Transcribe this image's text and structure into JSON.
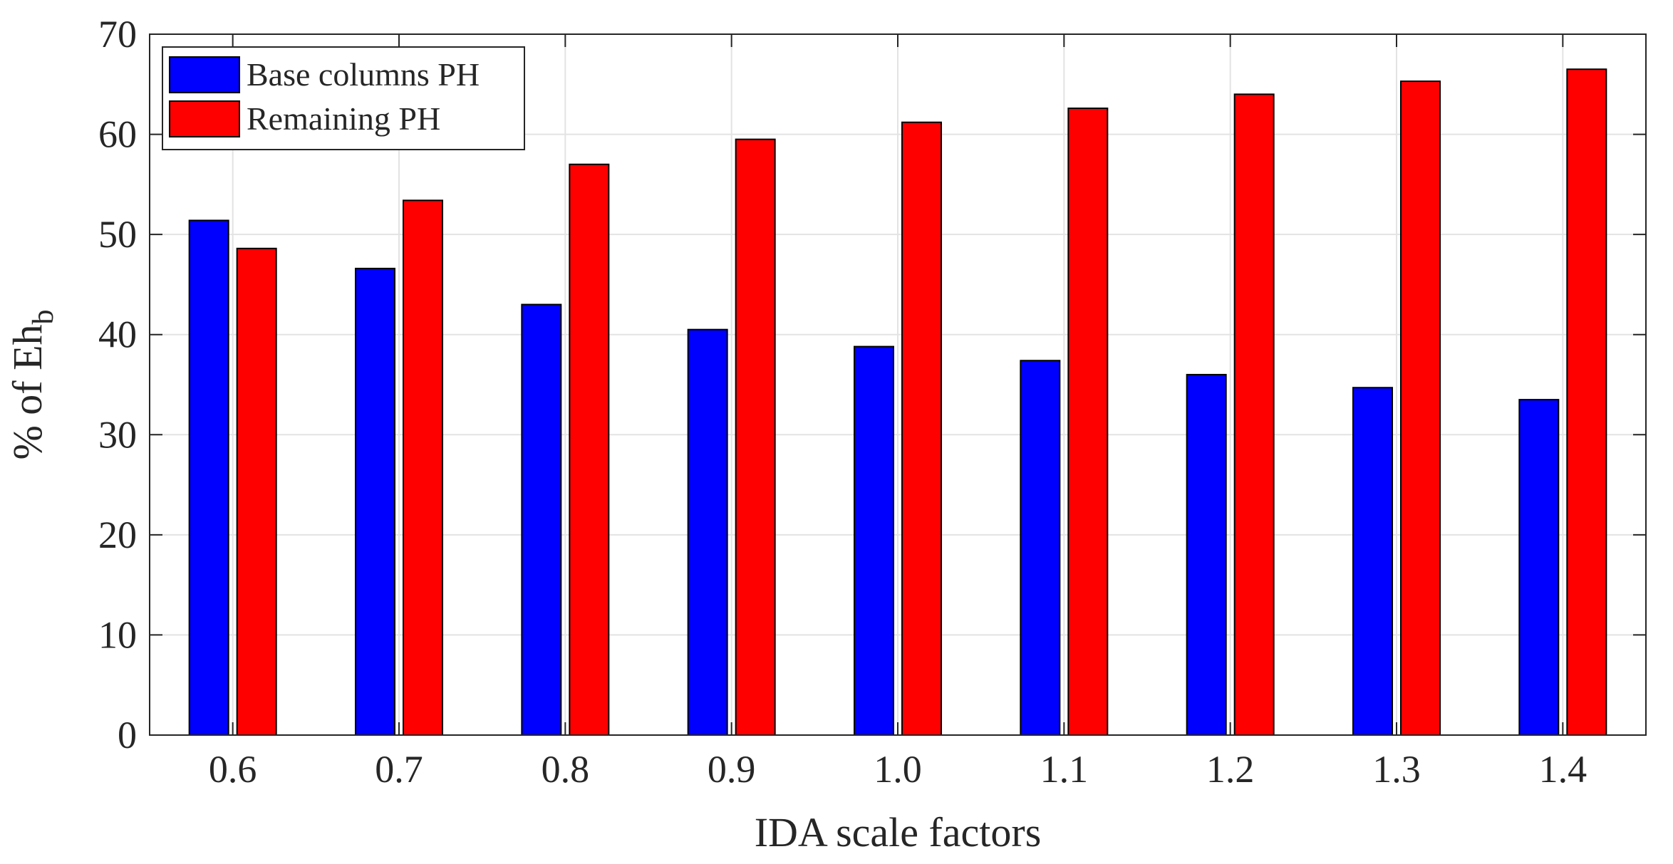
{
  "chart_data": {
    "type": "bar",
    "xlabel": "IDA scale factors",
    "ylabel": {
      "main": "% of Eh",
      "subscript": "b"
    },
    "categories": [
      "0.6",
      "0.7",
      "0.8",
      "0.9",
      "1.0",
      "1.1",
      "1.2",
      "1.3",
      "1.4"
    ],
    "ylim": [
      0,
      70
    ],
    "yticks": [
      "0",
      "10",
      "20",
      "30",
      "40",
      "50",
      "60",
      "70"
    ],
    "grid": true,
    "legend_position": "top-left",
    "series": [
      {
        "name": "Base columns PH",
        "color": "#0000ff",
        "values": [
          51.4,
          46.6,
          43.0,
          40.5,
          38.8,
          37.4,
          36.0,
          34.7,
          33.5
        ]
      },
      {
        "name": "Remaining PH",
        "color": "#ff0000",
        "values": [
          48.6,
          53.4,
          57.0,
          59.5,
          61.2,
          62.6,
          64.0,
          65.3,
          66.5
        ]
      }
    ]
  }
}
